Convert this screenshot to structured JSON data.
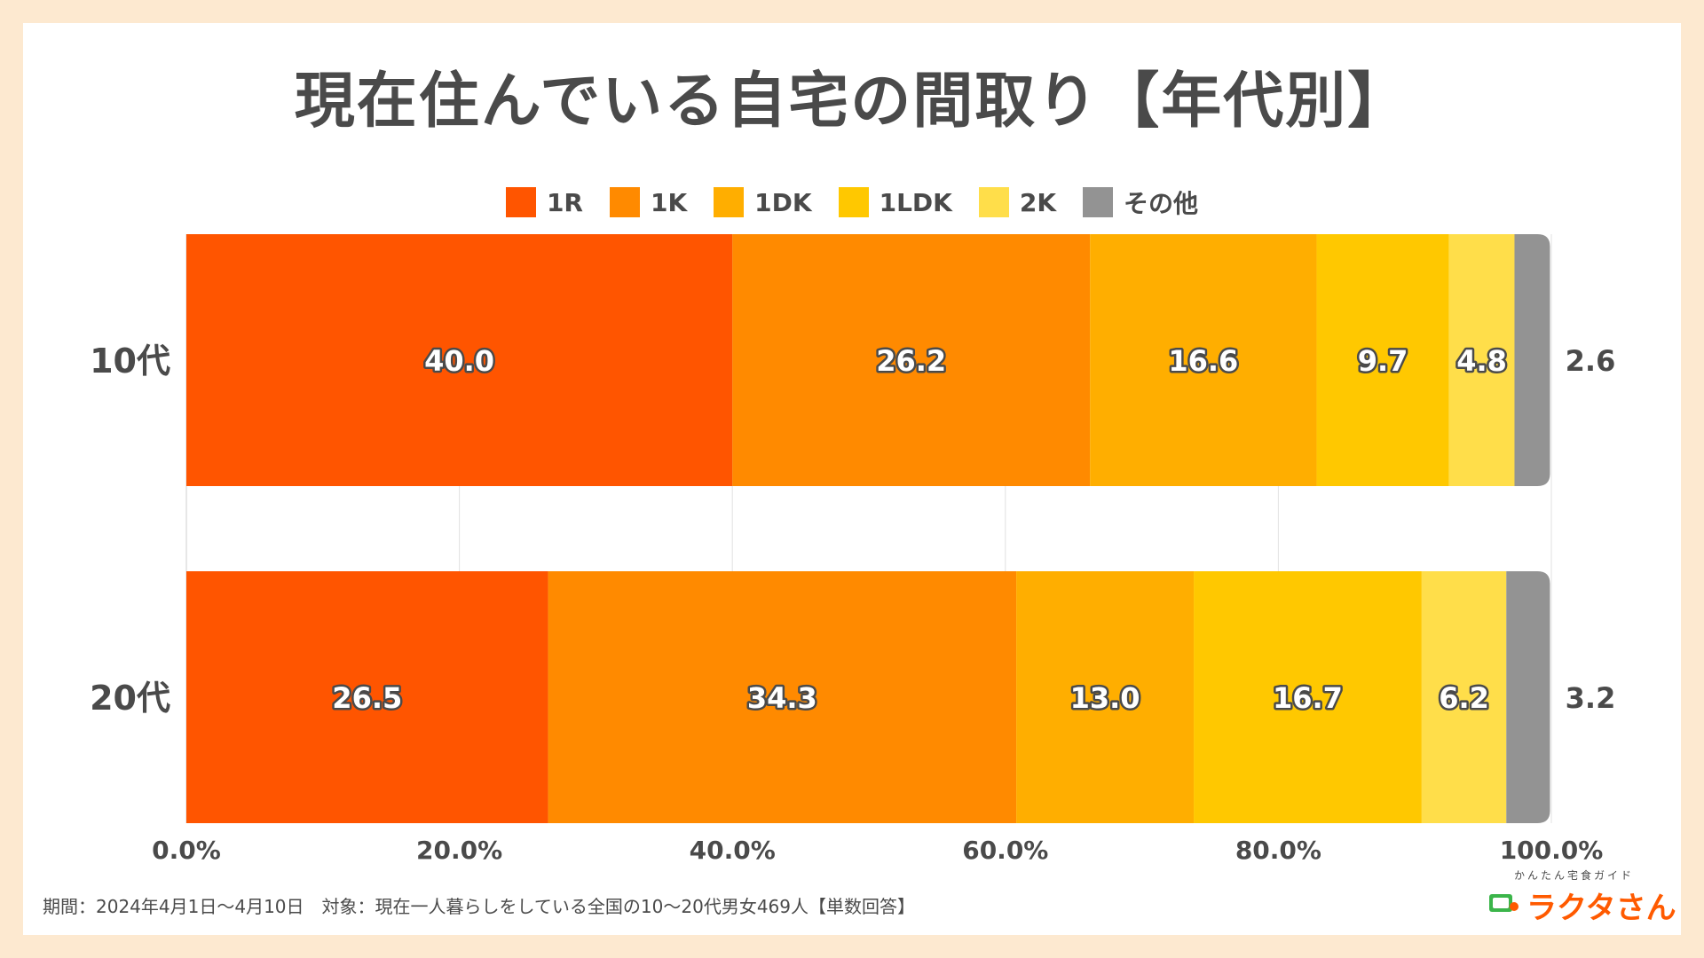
{
  "title": "現在住んでいる自宅の間取り【年代別】",
  "footnote": "期間：2024年4月1日〜4月10日　対象：現在一人暮らしをしている全国の10〜20代男女469人【単数回答】",
  "logo": {
    "subtitle": "かんたん宅食ガイド",
    "name": "ラクタさん",
    "icon": "lunchbox-icon"
  },
  "chart_data": {
    "type": "bar",
    "orientation": "horizontal",
    "stacked": true,
    "percent": true,
    "categories": [
      "10代",
      "20代"
    ],
    "series": [
      {
        "name": "1R",
        "color": "#ff5500",
        "values": [
          40.0,
          26.5
        ]
      },
      {
        "name": "1K",
        "color": "#ff8a00",
        "values": [
          26.2,
          34.3
        ]
      },
      {
        "name": "1DK",
        "color": "#ffae00",
        "values": [
          16.6,
          13.0
        ]
      },
      {
        "name": "1LDK",
        "color": "#ffc800",
        "values": [
          9.7,
          16.7
        ]
      },
      {
        "name": "2K",
        "color": "#ffde4a",
        "values": [
          4.8,
          6.2
        ]
      },
      {
        "name": "その他",
        "color": "#939393",
        "values": [
          2.6,
          3.2
        ]
      }
    ],
    "xlim": [
      0,
      100
    ],
    "xticks": [
      "0.0%",
      "20.0%",
      "40.0%",
      "60.0%",
      "80.0%",
      "100.0%"
    ],
    "grid": true,
    "legend": "top-center"
  }
}
